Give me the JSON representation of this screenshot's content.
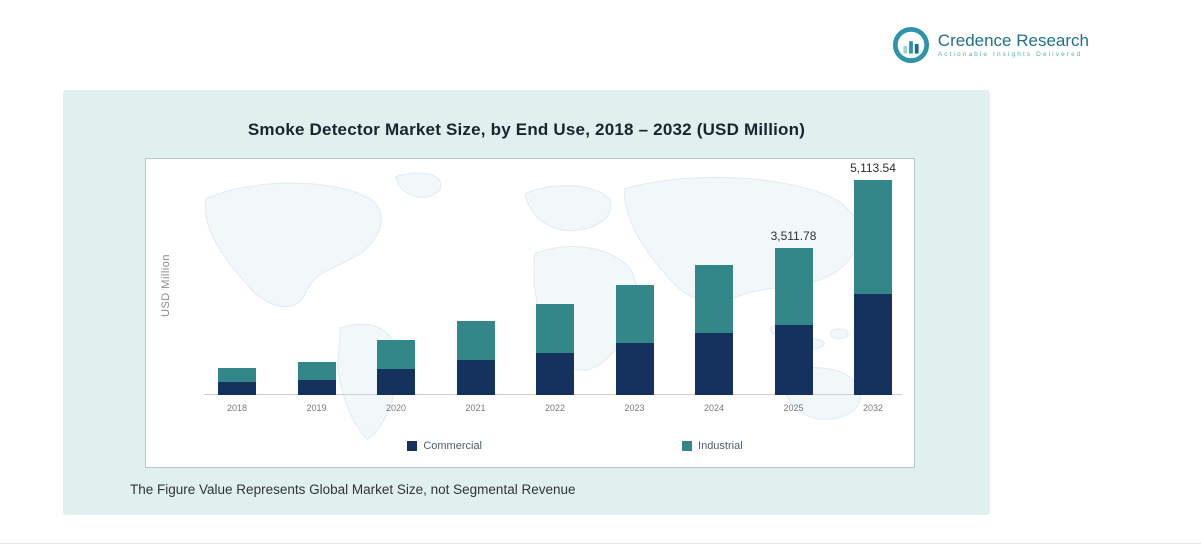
{
  "logo": {
    "brand": "Credence Research",
    "tagline": "Actionable Insights Delivered",
    "icon": "bar-chart-icon",
    "brand_color": "#20718c",
    "tagline_color": "#55aebe",
    "icon_color": "#2e94a9"
  },
  "panel": {
    "background": "#dff0ee",
    "footnote": "The Figure Value Represents Global Market Size, not Segmental Revenue"
  },
  "chart_data": {
    "type": "bar",
    "stacked": true,
    "title": "Smoke Detector Market Size, by End Use, 2018 – 2032 (USD Million)",
    "xlabel": "",
    "ylabel": "USD Million",
    "categories": [
      "2018",
      "2019",
      "2020",
      "2021",
      "2022",
      "2023",
      "2024",
      "2025",
      "2032"
    ],
    "series": [
      {
        "name": "Commercial",
        "color": "#15315e",
        "values": [
          320,
          370,
          620,
          825,
          1010,
          1240,
          1470,
          1675,
          2400
        ]
      },
      {
        "name": "Industrial",
        "color": "#338788",
        "values": [
          325,
          415,
          690,
          940,
          1150,
          1380,
          1630,
          1836.78,
          2713.54
        ]
      }
    ],
    "totals": [
      645,
      785,
      1310,
      1765,
      2160,
      2620,
      3100,
      3511.78,
      5113.54
    ],
    "data_labels": {
      "2025": "3,511.78",
      "2032": "5,113.54"
    },
    "ylim": [
      0,
      5600
    ],
    "grid": false,
    "legend_position": "bottom",
    "background_motif": "faint world map"
  }
}
